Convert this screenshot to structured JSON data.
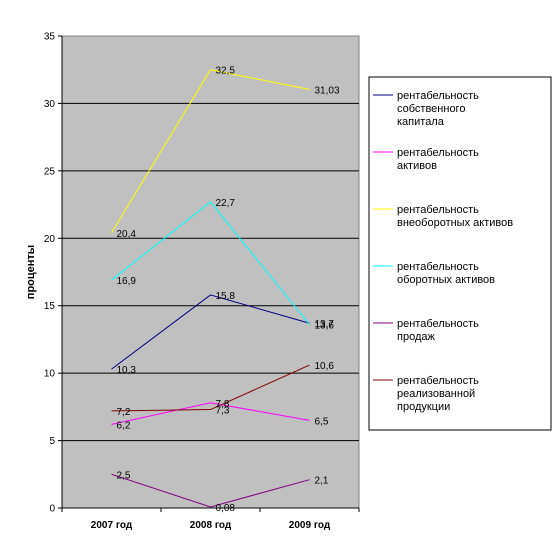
{
  "chart_data": {
    "type": "line",
    "categories": [
      "2007 год",
      "2008 год",
      "2009 год"
    ],
    "ylabel": "проценты",
    "ylim": [
      0,
      35
    ],
    "yticks": [
      "0",
      "5",
      "10",
      "15",
      "20",
      "25",
      "30",
      "35"
    ],
    "ytick_values": [
      0,
      5,
      10,
      15,
      20,
      25,
      30,
      35
    ],
    "grid": true,
    "legend_position": "right",
    "plot_background": "#c0c0c0",
    "series": [
      {
        "name": "рентабельность собственного капитала",
        "color": "#000080",
        "values": [
          10.3,
          15.8,
          13.7
        ],
        "labels": [
          "10,3",
          "15,8",
          "13,7"
        ]
      },
      {
        "name": "рентабельность активов",
        "color": "#ff00ff",
        "values": [
          6.2,
          7.8,
          6.5
        ],
        "labels": [
          "6,2",
          "7,8",
          "6,5"
        ]
      },
      {
        "name": "рентабельность внеоборотных активов",
        "color": "#ffff00",
        "values": [
          20.4,
          32.5,
          31.03
        ],
        "labels": [
          "20,4",
          "32,5",
          "31,03"
        ]
      },
      {
        "name": "рентабельность оборотных активов",
        "color": "#00ffff",
        "values": [
          16.9,
          22.7,
          13.6
        ],
        "labels": [
          "16,9",
          "22,7",
          "13,6"
        ]
      },
      {
        "name": "рентабельность продаж",
        "color": "#800080",
        "values": [
          2.5,
          0.08,
          2.1
        ],
        "labels": [
          "2,5",
          "0,08",
          "2,1"
        ]
      },
      {
        "name": "рентабельность реализованной продукции",
        "color": "#800000",
        "values": [
          7.2,
          7.3,
          10.6
        ],
        "labels": [
          "7,2",
          "7,3",
          "10,6"
        ]
      }
    ]
  }
}
